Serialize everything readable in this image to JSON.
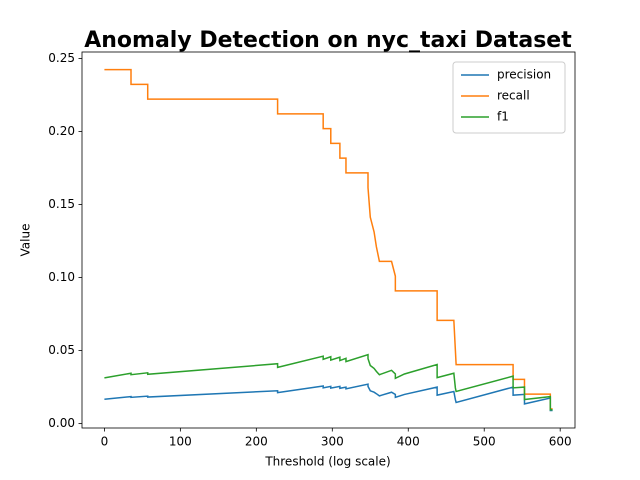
{
  "chart_data": {
    "type": "line",
    "title": "Anomaly Detection on nyc_taxi Dataset",
    "x_label": "Threshold (log scale)",
    "y_label": "Value",
    "x": [
      0,
      35,
      35,
      57,
      57,
      228,
      228,
      288,
      288,
      298,
      298,
      310,
      310,
      318,
      318,
      347,
      347,
      350,
      355,
      358,
      362,
      378,
      383,
      383,
      395,
      438,
      438,
      460,
      462,
      463,
      538,
      538,
      553,
      553,
      587,
      587,
      590
    ],
    "series": [
      {
        "name": "precision",
        "color": "#1f77b4",
        "values": [
          0.0167,
          0.0185,
          0.018,
          0.0188,
          0.0182,
          0.0225,
          0.0212,
          0.0258,
          0.0245,
          0.0255,
          0.0243,
          0.0255,
          0.0242,
          0.025,
          0.0238,
          0.027,
          0.0255,
          0.0225,
          0.0215,
          0.0205,
          0.019,
          0.0215,
          0.02,
          0.018,
          0.02,
          0.025,
          0.0195,
          0.022,
          0.0165,
          0.0145,
          0.025,
          0.0195,
          0.02,
          0.0135,
          0.0175,
          0.009,
          0.009
        ]
      },
      {
        "name": "recall",
        "color": "#ff7f0e",
        "values": [
          0.2424,
          0.2424,
          0.2323,
          0.2323,
          0.2222,
          0.2222,
          0.2121,
          0.2121,
          0.202,
          0.202,
          0.1919,
          0.1919,
          0.1818,
          0.1818,
          0.1717,
          0.1717,
          0.1616,
          0.1414,
          0.1313,
          0.1212,
          0.1111,
          0.1111,
          0.101,
          0.0909,
          0.0909,
          0.0909,
          0.0707,
          0.0707,
          0.0505,
          0.0404,
          0.0404,
          0.0303,
          0.0303,
          0.0202,
          0.0202,
          0.0101,
          0.0101
        ]
      },
      {
        "name": "f1",
        "color": "#2ca02c",
        "values": [
          0.0313,
          0.0345,
          0.0335,
          0.0348,
          0.0338,
          0.041,
          0.0385,
          0.0462,
          0.044,
          0.0458,
          0.0435,
          0.0455,
          0.0432,
          0.0447,
          0.0425,
          0.0472,
          0.0445,
          0.0398,
          0.0378,
          0.0358,
          0.0335,
          0.0365,
          0.034,
          0.031,
          0.034,
          0.0405,
          0.0315,
          0.0345,
          0.0245,
          0.022,
          0.0325,
          0.0245,
          0.025,
          0.0165,
          0.0185,
          0.0095,
          0.0095
        ]
      }
    ],
    "xlim": [
      -29.5,
      619.5
    ],
    "xticks": [
      0,
      100,
      200,
      300,
      400,
      500,
      600
    ],
    "ylim": [
      -0.003,
      0.2545
    ],
    "yticks": [
      {
        "value": 0,
        "label": "0.00"
      },
      {
        "value": 0.05,
        "label": "0.05"
      },
      {
        "value": 0.1,
        "label": "0.10"
      },
      {
        "value": 0.15,
        "label": "0.15"
      },
      {
        "value": 0.2,
        "label": "0.20"
      },
      {
        "value": 0.25,
        "label": "0.25"
      }
    ],
    "legend": "upper right"
  }
}
